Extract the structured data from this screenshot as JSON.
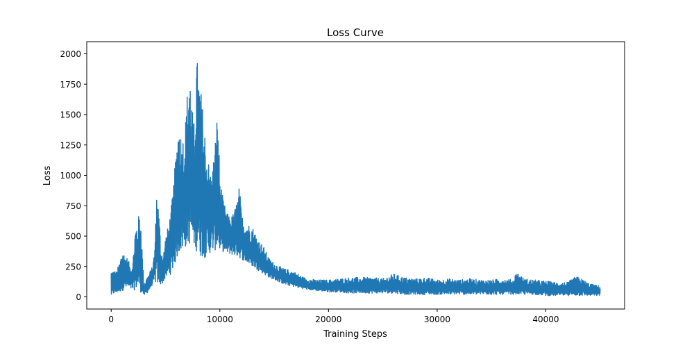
{
  "chart_data": {
    "type": "line",
    "title": "Loss Curve",
    "xlabel": "Training Steps",
    "ylabel": "Loss",
    "xlim": [
      -2250,
      47250
    ],
    "ylim": [
      -100,
      2100
    ],
    "x_ticks": [
      0,
      10000,
      20000,
      30000,
      40000
    ],
    "x_tick_labels": [
      "0",
      "10000",
      "20000",
      "30000",
      "40000"
    ],
    "y_ticks": [
      0,
      250,
      500,
      750,
      1000,
      1250,
      1500,
      1750,
      2000
    ],
    "y_tick_labels": [
      "0",
      "250",
      "500",
      "750",
      "1000",
      "1250",
      "1500",
      "1750",
      "2000"
    ],
    "grid": false,
    "legend": "none",
    "series_color": "#1f77b4",
    "series": [
      {
        "x": [
          0,
          200,
          500,
          800,
          1000,
          1200,
          1500,
          1800,
          2000,
          2200,
          2500,
          2700,
          2900,
          3000,
          3200,
          3500,
          3800,
          4000,
          4200,
          4400,
          4600,
          4800,
          5000,
          5300,
          5600,
          5800,
          6000,
          6200,
          6500,
          6800,
          7000,
          7200,
          7500,
          7700,
          7800,
          8000,
          8200,
          8500,
          8800,
          9000,
          9200,
          9500,
          9800,
          10000,
          10300,
          10600,
          11000,
          11300,
          11600,
          11800,
          12000,
          12300,
          12600,
          13000,
          13500,
          14000,
          14500,
          15000,
          15500,
          16000,
          16500,
          17000,
          17500,
          18000,
          19000,
          20000,
          21000,
          22000,
          23000,
          24000,
          25000,
          26000,
          27000,
          28000,
          29000,
          30000,
          31000,
          32000,
          33000,
          34000,
          35000,
          36000,
          37000,
          37300,
          38000,
          39000,
          40000,
          41000,
          42000,
          42800,
          43500,
          44000,
          44500,
          45000
        ],
        "low": [
          0,
          20,
          30,
          40,
          50,
          60,
          70,
          60,
          50,
          60,
          70,
          40,
          20,
          10,
          20,
          50,
          100,
          120,
          100,
          90,
          100,
          120,
          150,
          170,
          200,
          250,
          300,
          350,
          380,
          400,
          420,
          430,
          420,
          400,
          380,
          350,
          330,
          320,
          330,
          350,
          370,
          380,
          390,
          380,
          370,
          360,
          350,
          340,
          330,
          320,
          310,
          290,
          270,
          250,
          220,
          190,
          160,
          140,
          120,
          100,
          90,
          80,
          70,
          60,
          50,
          40,
          40,
          30,
          30,
          30,
          30,
          30,
          20,
          20,
          20,
          20,
          20,
          20,
          20,
          20,
          20,
          20,
          20,
          20,
          20,
          20,
          10,
          10,
          10,
          10,
          10,
          10,
          10,
          10
        ],
        "high": [
          230,
          220,
          210,
          300,
          400,
          360,
          320,
          250,
          300,
          580,
          660,
          720,
          300,
          120,
          150,
          200,
          250,
          400,
          920,
          700,
          400,
          350,
          500,
          600,
          800,
          1000,
          1230,
          1500,
          1300,
          1400,
          1700,
          1950,
          1500,
          1400,
          2000,
          1920,
          1750,
          1500,
          1200,
          1100,
          1000,
          1200,
          1570,
          1000,
          800,
          700,
          650,
          700,
          800,
          920,
          680,
          620,
          600,
          580,
          480,
          420,
          320,
          280,
          250,
          230,
          220,
          200,
          170,
          150,
          140,
          140,
          150,
          160,
          160,
          160,
          150,
          190,
          160,
          150,
          160,
          140,
          150,
          140,
          150,
          140,
          140,
          150,
          140,
          210,
          150,
          140,
          130,
          120,
          120,
          170,
          140,
          110,
          100,
          90
        ]
      }
    ]
  }
}
